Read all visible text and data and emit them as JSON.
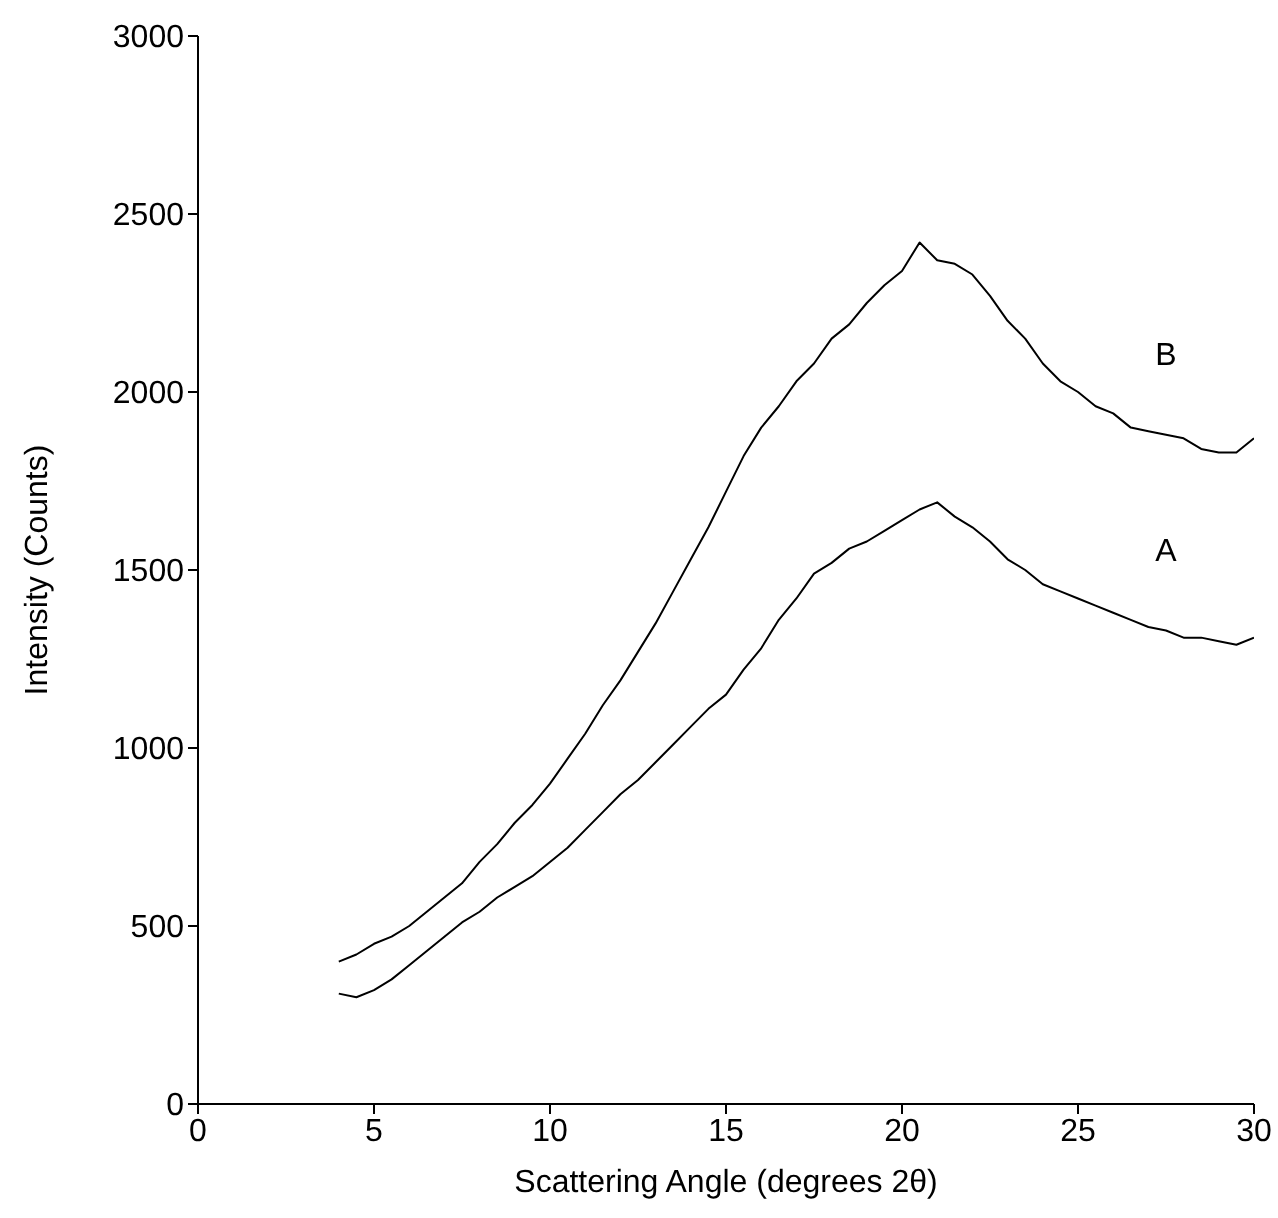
{
  "chart_data": {
    "type": "line",
    "xlabel": "Scattering Angle (degrees 2θ)",
    "ylabel": "Intensity (Counts)",
    "x": [
      4,
      4.5,
      5,
      5.5,
      6,
      6.5,
      7,
      7.5,
      8,
      8.5,
      9,
      9.5,
      10,
      10.5,
      11,
      11.5,
      12,
      12.5,
      13,
      13.5,
      14,
      14.5,
      15,
      15.5,
      16,
      16.5,
      17,
      17.5,
      18,
      18.5,
      19,
      19.5,
      20,
      20.5,
      21,
      21.5,
      22,
      22.5,
      23,
      23.5,
      24,
      24.5,
      25,
      25.5,
      26,
      26.5,
      27,
      27.5,
      28,
      28.5,
      29,
      29.5,
      30
    ],
    "series": [
      {
        "name": "B",
        "color": "#000000",
        "values": [
          400,
          420,
          450,
          470,
          500,
          540,
          580,
          620,
          680,
          730,
          790,
          840,
          900,
          970,
          1040,
          1120,
          1190,
          1270,
          1350,
          1440,
          1530,
          1620,
          1720,
          1820,
          1900,
          1960,
          2030,
          2080,
          2150,
          2190,
          2250,
          2300,
          2340,
          2420,
          2370,
          2360,
          2330,
          2270,
          2200,
          2150,
          2080,
          2030,
          2000,
          1960,
          1940,
          1900,
          1890,
          1880,
          1870,
          1840,
          1830,
          1830,
          1870
        ]
      },
      {
        "name": "A",
        "color": "#000000",
        "values": [
          310,
          300,
          320,
          350,
          390,
          430,
          470,
          510,
          540,
          580,
          610,
          640,
          680,
          720,
          770,
          820,
          870,
          910,
          960,
          1010,
          1060,
          1110,
          1150,
          1220,
          1280,
          1360,
          1420,
          1490,
          1520,
          1560,
          1580,
          1610,
          1640,
          1670,
          1690,
          1650,
          1620,
          1580,
          1530,
          1500,
          1460,
          1440,
          1420,
          1400,
          1380,
          1360,
          1340,
          1330,
          1310,
          1310,
          1300,
          1290,
          1310
        ]
      }
    ],
    "xlim": [
      0,
      30
    ],
    "xticks": [
      0,
      5,
      10,
      15,
      20,
      25,
      30
    ],
    "ylim": [
      0,
      3000
    ],
    "yticks": [
      0,
      500,
      1000,
      1500,
      2000,
      2500,
      3000
    ],
    "grid": false,
    "legend": false,
    "marker": "none",
    "line_style": "solid"
  }
}
